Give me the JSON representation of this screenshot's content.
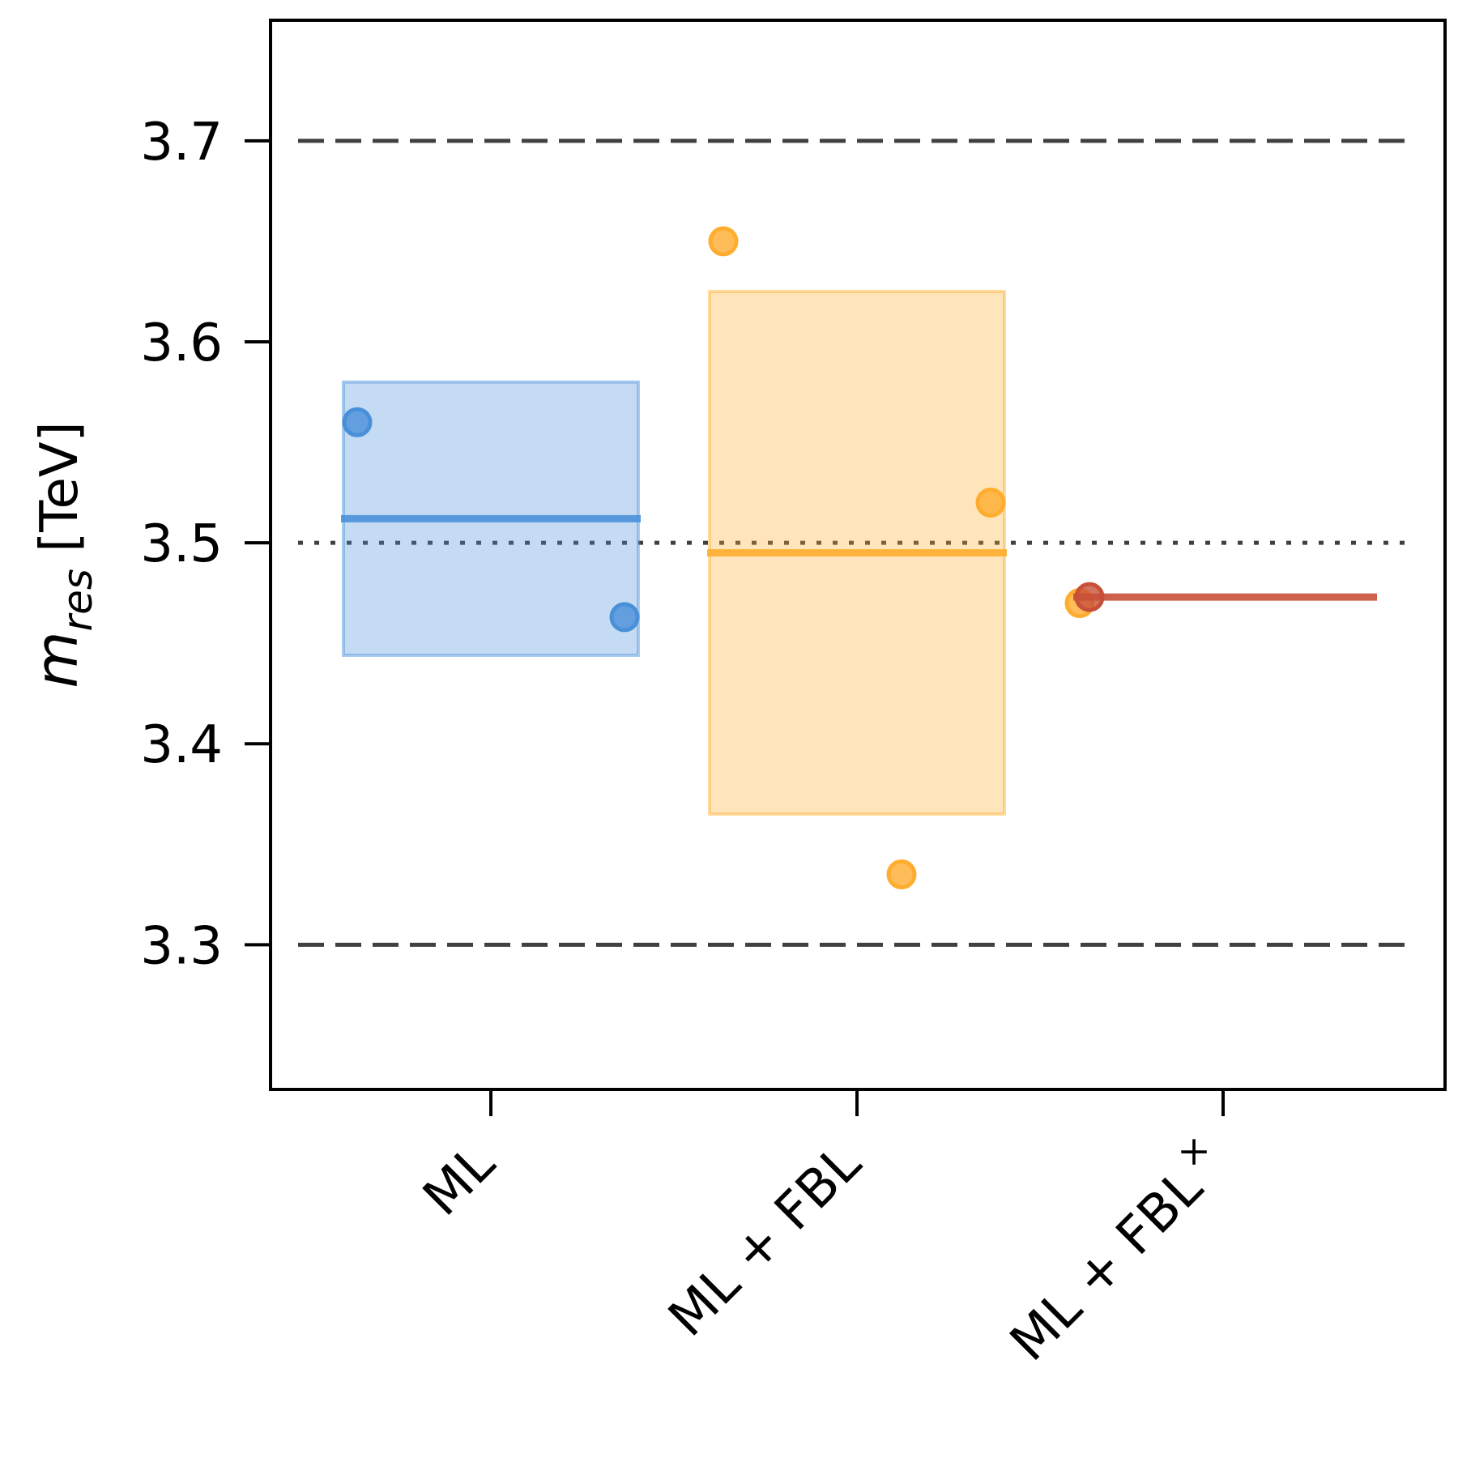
{
  "chart_data": {
    "type": "scatter",
    "ylabel": {
      "symbol": "m",
      "subscript": "res",
      "unit": "[TeV]"
    },
    "ylim": [
      3.228,
      3.76
    ],
    "yticks": [
      3.3,
      3.4,
      3.5,
      3.6,
      3.7
    ],
    "ytick_labels": [
      "3.3",
      "3.4",
      "3.5",
      "3.6",
      "3.7"
    ],
    "categories": [
      "ML",
      "ML + FBL",
      "ML + FBL"
    ],
    "category_superscripts": [
      "",
      "",
      "×"
    ],
    "reference_lines": [
      {
        "y": 3.7,
        "style": "dashed",
        "color": "#404040"
      },
      {
        "y": 3.5,
        "style": "dotted",
        "color": "#404040"
      },
      {
        "y": 3.3,
        "style": "dashed",
        "color": "#404040"
      }
    ],
    "groups": [
      {
        "category_index": 0,
        "color": "#4a90d9",
        "points": [
          3.56,
          3.463
        ],
        "mean": 3.512,
        "band": [
          3.444,
          3.58
        ]
      },
      {
        "category_index": 1,
        "color": "#ffad2f",
        "points": [
          3.65,
          3.335,
          3.52,
          3.47
        ],
        "mean": 3.495,
        "band": [
          3.365,
          3.625
        ]
      },
      {
        "category_index": 2,
        "color": "#c8503a",
        "points": [
          3.473
        ],
        "mean": 3.473,
        "band": null
      }
    ],
    "grid": false,
    "legend": "none"
  }
}
